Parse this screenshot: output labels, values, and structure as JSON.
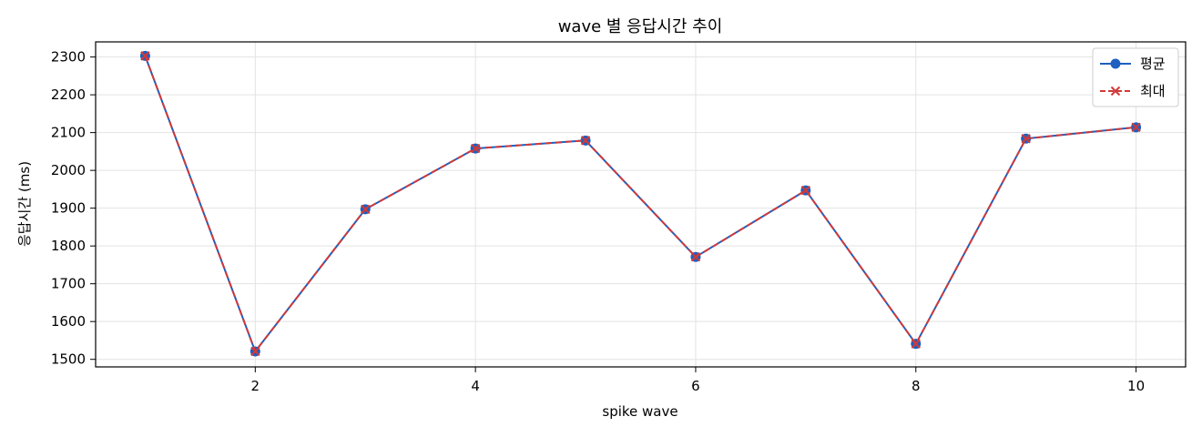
{
  "chart_data": {
    "type": "line",
    "title": "wave 별 응답시간 추이",
    "xlabel": "spike wave",
    "ylabel": "응답시간 (ms)",
    "x": [
      1,
      2,
      3,
      4,
      5,
      6,
      7,
      8,
      9,
      10
    ],
    "xlim": [
      0.55,
      10.45
    ],
    "ylim": [
      1480,
      2340
    ],
    "xticks": [
      2,
      4,
      6,
      8,
      10
    ],
    "yticks": [
      1500,
      1600,
      1700,
      1800,
      1900,
      2000,
      2100,
      2200,
      2300
    ],
    "grid": true,
    "legend_position": "top-right",
    "series": [
      {
        "name": "평균",
        "color": "#1f5fbf",
        "line_style": "solid",
        "marker": "circle",
        "values": [
          2303,
          1521,
          1897,
          2058,
          2079,
          1771,
          1947,
          1541,
          2084,
          2114
        ]
      },
      {
        "name": "최대",
        "color": "#d03a3a",
        "line_style": "dashed",
        "marker": "x",
        "values": [
          2303,
          1521,
          1897,
          2058,
          2079,
          1771,
          1947,
          1541,
          2084,
          2114
        ]
      }
    ]
  }
}
